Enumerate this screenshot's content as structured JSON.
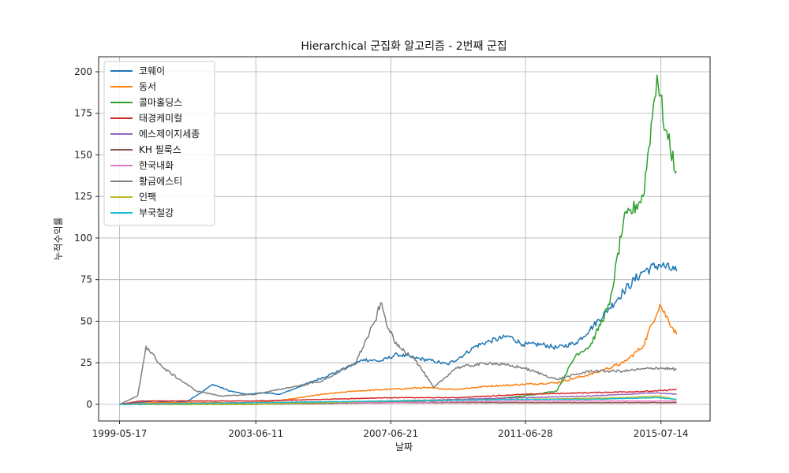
{
  "chart_data": {
    "type": "line",
    "title": "Hierarchical 군집화 알고리즘 - 2번째 군집",
    "xlabel": "날짜",
    "ylabel": "누적수익률",
    "x_tick_labels": [
      "1999-05-17",
      "2003-06-11",
      "2007-06-21",
      "2011-06-28",
      "2015-07-14"
    ],
    "x_tick_dates": [
      "1999-05-17",
      "2003-06-11",
      "2007-06-21",
      "2011-06-28",
      "2015-07-14"
    ],
    "x_range": [
      "1998-10-01",
      "2016-12-31"
    ],
    "y_ticks": [
      0,
      25,
      50,
      75,
      100,
      125,
      150,
      175,
      200
    ],
    "ylim": [
      -10,
      209
    ],
    "grid": true,
    "legend_position": "top-left",
    "series": [
      {
        "name": "코웨이",
        "color": "#1f77b4",
        "points": [
          [
            "1999-05-17",
            0
          ],
          [
            "1999-12-01",
            1
          ],
          [
            "2000-06-01",
            2
          ],
          [
            "2001-01-01",
            1
          ],
          [
            "2001-06-01",
            2
          ],
          [
            "2002-03-01",
            12
          ],
          [
            "2002-09-01",
            8
          ],
          [
            "2003-03-01",
            6
          ],
          [
            "2003-09-01",
            7
          ],
          [
            "2004-03-01",
            6
          ],
          [
            "2004-09-01",
            10
          ],
          [
            "2005-03-01",
            14
          ],
          [
            "2005-09-01",
            18
          ],
          [
            "2006-03-01",
            22
          ],
          [
            "2006-09-01",
            27
          ],
          [
            "2007-03-01",
            26
          ],
          [
            "2007-09-01",
            30
          ],
          [
            "2008-03-01",
            28
          ],
          [
            "2008-10-01",
            26
          ],
          [
            "2009-03-01",
            24
          ],
          [
            "2009-09-01",
            30
          ],
          [
            "2010-01-01",
            35
          ],
          [
            "2010-06-01",
            38
          ],
          [
            "2011-01-01",
            41
          ],
          [
            "2011-06-01",
            36
          ],
          [
            "2012-01-01",
            36
          ],
          [
            "2012-06-01",
            34
          ],
          [
            "2013-01-01",
            37
          ],
          [
            "2013-06-01",
            45
          ],
          [
            "2014-01-01",
            58
          ],
          [
            "2014-06-01",
            68
          ],
          [
            "2015-01-01",
            80
          ],
          [
            "2015-07-01",
            84
          ],
          [
            "2016-01-01",
            80
          ]
        ]
      },
      {
        "name": "동서",
        "color": "#ff7f0e",
        "points": [
          [
            "1999-05-17",
            0
          ],
          [
            "2000-06-01",
            1
          ],
          [
            "2002-01-01",
            1
          ],
          [
            "2003-06-01",
            1
          ],
          [
            "2004-06-01",
            3
          ],
          [
            "2005-06-01",
            6
          ],
          [
            "2006-06-01",
            8
          ],
          [
            "2007-06-01",
            9
          ],
          [
            "2008-06-01",
            10
          ],
          [
            "2009-06-01",
            9
          ],
          [
            "2010-06-01",
            11
          ],
          [
            "2011-06-01",
            12
          ],
          [
            "2012-06-01",
            13
          ],
          [
            "2013-06-01",
            18
          ],
          [
            "2014-06-01",
            25
          ],
          [
            "2015-01-01",
            35
          ],
          [
            "2015-07-01",
            60
          ],
          [
            "2016-01-01",
            42
          ]
        ]
      },
      {
        "name": "콜마홀딩스",
        "color": "#2ca02c",
        "points": [
          [
            "1999-05-17",
            0
          ],
          [
            "2003-06-01",
            0
          ],
          [
            "2006-06-01",
            1
          ],
          [
            "2008-06-01",
            2
          ],
          [
            "2010-06-01",
            3
          ],
          [
            "2011-06-01",
            5
          ],
          [
            "2012-06-01",
            8
          ],
          [
            "2013-01-01",
            30
          ],
          [
            "2013-06-01",
            35
          ],
          [
            "2014-01-01",
            60
          ],
          [
            "2014-06-01",
            110
          ],
          [
            "2015-01-01",
            125
          ],
          [
            "2015-06-01",
            198
          ],
          [
            "2015-09-01",
            165
          ],
          [
            "2016-01-01",
            140
          ]
        ]
      },
      {
        "name": "태경케미컬",
        "color": "#d62728",
        "points": [
          [
            "1999-05-17",
            0
          ],
          [
            "2000-01-01",
            2
          ],
          [
            "2003-06-01",
            2
          ],
          [
            "2005-06-01",
            3
          ],
          [
            "2007-06-01",
            4
          ],
          [
            "2009-06-01",
            4
          ],
          [
            "2011-06-01",
            6
          ],
          [
            "2013-06-01",
            7
          ],
          [
            "2015-06-01",
            8
          ],
          [
            "2016-01-01",
            9
          ]
        ]
      },
      {
        "name": "에스제이지세종",
        "color": "#9467bd",
        "points": [
          [
            "1999-05-17",
            0
          ],
          [
            "2003-06-01",
            1
          ],
          [
            "2007-06-01",
            2
          ],
          [
            "2011-06-01",
            4
          ],
          [
            "2013-06-01",
            5
          ],
          [
            "2015-06-01",
            7
          ],
          [
            "2016-01-01",
            6
          ]
        ]
      },
      {
        "name": "KH 필룩스",
        "color": "#8c564b",
        "points": [
          [
            "1999-05-17",
            0
          ],
          [
            "2003-06-01",
            0
          ],
          [
            "2007-06-01",
            1
          ],
          [
            "2011-06-01",
            1
          ],
          [
            "2015-06-01",
            1
          ],
          [
            "2016-01-01",
            1
          ]
        ]
      },
      {
        "name": "한국내화",
        "color": "#e377c2",
        "points": [
          [
            "1999-05-17",
            0
          ],
          [
            "2003-06-01",
            1
          ],
          [
            "2007-06-01",
            1
          ],
          [
            "2011-06-01",
            2
          ],
          [
            "2015-06-01",
            2
          ],
          [
            "2016-01-01",
            2
          ]
        ]
      },
      {
        "name": "황금에스티",
        "color": "#7f7f7f",
        "points": [
          [
            "1999-05-17",
            0
          ],
          [
            "1999-12-01",
            5
          ],
          [
            "2000-03-01",
            35
          ],
          [
            "2000-09-01",
            22
          ],
          [
            "2001-03-01",
            15
          ],
          [
            "2001-09-01",
            8
          ],
          [
            "2002-06-01",
            5
          ],
          [
            "2003-06-01",
            6
          ],
          [
            "2004-06-01",
            10
          ],
          [
            "2005-06-01",
            14
          ],
          [
            "2006-06-01",
            25
          ],
          [
            "2007-01-01",
            50
          ],
          [
            "2007-03-01",
            61
          ],
          [
            "2007-06-01",
            45
          ],
          [
            "2007-09-01",
            35
          ],
          [
            "2008-03-01",
            28
          ],
          [
            "2008-10-01",
            10
          ],
          [
            "2009-06-01",
            22
          ],
          [
            "2010-06-01",
            25
          ],
          [
            "2011-06-01",
            22
          ],
          [
            "2012-01-01",
            18
          ],
          [
            "2012-06-01",
            15
          ],
          [
            "2013-06-01",
            20
          ],
          [
            "2014-06-01",
            20
          ],
          [
            "2015-06-01",
            22
          ],
          [
            "2016-01-01",
            21
          ]
        ]
      },
      {
        "name": "인팩",
        "color": "#bcbd22",
        "points": [
          [
            "1999-05-17",
            0
          ],
          [
            "2003-06-01",
            0
          ],
          [
            "2007-06-01",
            2
          ],
          [
            "2011-06-01",
            3
          ],
          [
            "2014-06-01",
            4
          ],
          [
            "2015-06-01",
            5
          ],
          [
            "2016-01-01",
            3
          ]
        ]
      },
      {
        "name": "부국철강",
        "color": "#17becf",
        "points": [
          [
            "1999-05-17",
            0
          ],
          [
            "2003-06-01",
            1
          ],
          [
            "2007-06-01",
            2
          ],
          [
            "2011-06-01",
            3
          ],
          [
            "2013-06-01",
            3
          ],
          [
            "2015-06-01",
            4
          ],
          [
            "2016-01-01",
            3
          ]
        ]
      }
    ]
  }
}
